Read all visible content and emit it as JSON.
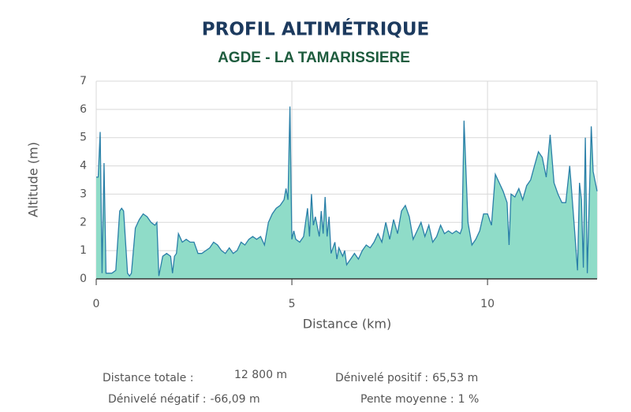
{
  "chart_data": {
    "type": "area",
    "title": "PROFIL ALTIMÉTRIQUE",
    "subtitle": "AGDE - LA TAMARISSIERE",
    "x_label": "Distance (km)",
    "y_label": "Altitude (m)",
    "line_color": "#2a7fa8",
    "fill_color": "#8fdcc8",
    "grid": true,
    "xlim": [
      0,
      12.8
    ],
    "ylim": [
      0,
      7
    ],
    "xticks": [
      0,
      5,
      10
    ],
    "yticks": [
      0,
      1,
      2,
      3,
      4,
      5,
      6,
      7
    ],
    "x": [
      0,
      0.05,
      0.1,
      0.15,
      0.2,
      0.25,
      0.3,
      0.4,
      0.5,
      0.6,
      0.65,
      0.7,
      0.8,
      0.85,
      0.9,
      1.0,
      1.1,
      1.2,
      1.3,
      1.4,
      1.5,
      1.55,
      1.6,
      1.7,
      1.8,
      1.9,
      1.95,
      2.0,
      2.05,
      2.1,
      2.2,
      2.3,
      2.4,
      2.5,
      2.6,
      2.7,
      2.8,
      2.9,
      3.0,
      3.1,
      3.2,
      3.3,
      3.4,
      3.5,
      3.6,
      3.7,
      3.8,
      3.9,
      4.0,
      4.1,
      4.2,
      4.3,
      4.4,
      4.5,
      4.6,
      4.7,
      4.8,
      4.85,
      4.9,
      4.95,
      5.0,
      5.05,
      5.1,
      5.2,
      5.3,
      5.4,
      5.45,
      5.5,
      5.55,
      5.6,
      5.7,
      5.75,
      5.8,
      5.85,
      5.9,
      5.95,
      6.0,
      6.1,
      6.15,
      6.2,
      6.3,
      6.35,
      6.4,
      6.5,
      6.6,
      6.7,
      6.8,
      6.9,
      7.0,
      7.1,
      7.2,
      7.3,
      7.4,
      7.5,
      7.6,
      7.7,
      7.8,
      7.9,
      8.0,
      8.1,
      8.2,
      8.3,
      8.4,
      8.5,
      8.6,
      8.7,
      8.8,
      8.9,
      9.0,
      9.1,
      9.2,
      9.3,
      9.35,
      9.4,
      9.5,
      9.6,
      9.7,
      9.8,
      9.9,
      10.0,
      10.1,
      10.2,
      10.3,
      10.4,
      10.5,
      10.55,
      10.6,
      10.7,
      10.8,
      10.9,
      11.0,
      11.1,
      11.2,
      11.3,
      11.4,
      11.5,
      11.6,
      11.7,
      11.8,
      11.9,
      12.0,
      12.1,
      12.2,
      12.3,
      12.35,
      12.4,
      12.45,
      12.5,
      12.55,
      12.65,
      12.7,
      12.8
    ],
    "values": [
      3.6,
      3.6,
      5.2,
      0.2,
      4.1,
      0.2,
      0.2,
      0.2,
      0.3,
      2.4,
      2.5,
      2.4,
      0.2,
      0.1,
      0.2,
      1.8,
      2.1,
      2.3,
      2.2,
      2.0,
      1.9,
      2.0,
      0.1,
      0.8,
      0.9,
      0.8,
      0.2,
      0.8,
      0.9,
      1.6,
      1.3,
      1.4,
      1.3,
      1.3,
      0.9,
      0.9,
      1.0,
      1.1,
      1.3,
      1.2,
      1.0,
      0.9,
      1.1,
      0.9,
      1.0,
      1.3,
      1.2,
      1.4,
      1.5,
      1.4,
      1.5,
      1.2,
      2.0,
      2.3,
      2.5,
      2.6,
      2.8,
      3.2,
      2.8,
      6.1,
      1.4,
      1.7,
      1.4,
      1.3,
      1.5,
      2.5,
      1.5,
      3.0,
      1.9,
      2.2,
      1.5,
      2.4,
      1.6,
      2.9,
      1.5,
      2.2,
      0.9,
      1.3,
      0.7,
      1.1,
      0.8,
      1.0,
      0.5,
      0.7,
      0.9,
      0.7,
      1.0,
      1.2,
      1.1,
      1.3,
      1.6,
      1.3,
      2.0,
      1.4,
      2.1,
      1.6,
      2.4,
      2.6,
      2.2,
      1.4,
      1.7,
      2.0,
      1.5,
      1.9,
      1.3,
      1.5,
      1.9,
      1.6,
      1.7,
      1.6,
      1.7,
      1.6,
      1.8,
      5.6,
      2.0,
      1.2,
      1.4,
      1.7,
      2.3,
      2.3,
      1.9,
      3.7,
      3.4,
      3.1,
      2.7,
      1.2,
      3.0,
      2.9,
      3.2,
      2.8,
      3.3,
      3.5,
      4.0,
      4.5,
      4.3,
      3.6,
      5.1,
      3.4,
      3.0,
      2.7,
      2.7,
      4.0,
      2.2,
      0.3,
      3.4,
      2.8,
      0.4,
      5.0,
      0.2,
      5.4,
      3.8,
      3.1
    ]
  },
  "stats": [
    {
      "label": "Distance totale :",
      "value": "12 800 m"
    },
    {
      "label": "Dénivelé positif :",
      "value": "65,53 m"
    },
    {
      "label": "Dénivelé négatif :",
      "value": "-66,09 m"
    },
    {
      "label": "Pente moyenne :",
      "value": "1 %"
    }
  ]
}
